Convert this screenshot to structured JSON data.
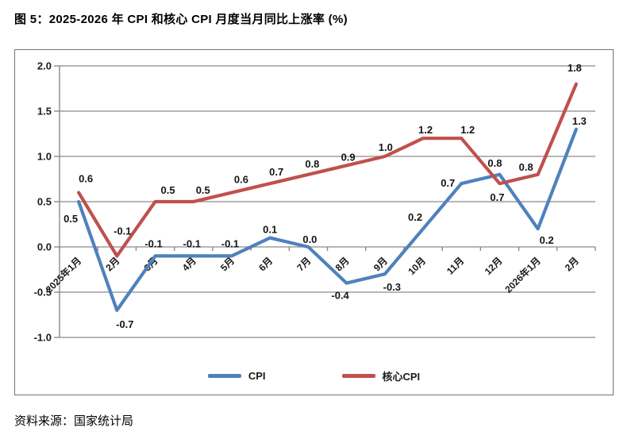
{
  "figure": {
    "title": "图 5：2025-2026 年 CPI 和核心 CPI 月度当月同比上涨率 (%)",
    "source": "资料来源：国家统计局"
  },
  "chart_data": {
    "type": "line",
    "title": "2025-2026 年 CPI 和核心 CPI 月度当月同比上涨率 (%)",
    "categories": [
      "2025年1月",
      "2月",
      "3月",
      "4月",
      "5月",
      "6月",
      "7月",
      "8月",
      "9月",
      "10月",
      "11月",
      "12月",
      "2026年1月",
      "2月"
    ],
    "series": [
      {
        "id": "cpi",
        "name": "CPI",
        "color": "#4F81BD",
        "values": [
          0.5,
          -0.7,
          -0.1,
          -0.1,
          -0.1,
          0.1,
          0.0,
          -0.4,
          -0.3,
          0.2,
          0.7,
          0.8,
          0.2,
          1.3
        ]
      },
      {
        "id": "core-cpi",
        "name": "核心CPI",
        "color": "#C0504D",
        "values": [
          0.6,
          -0.1,
          0.5,
          0.5,
          0.6,
          0.7,
          0.8,
          0.9,
          1.0,
          1.2,
          1.2,
          0.7,
          0.8,
          1.8
        ]
      }
    ],
    "ylim": [
      -1.0,
      2.0
    ],
    "yticks": [
      2.0,
      1.5,
      1.0,
      0.5,
      0.0,
      -0.5,
      -1.0
    ],
    "ytick_labels": [
      "2.0",
      "1.5",
      "1.0",
      "0.5",
      "0.0",
      "-0.5",
      "-1.0"
    ],
    "data_labels_shown": true,
    "data_label_decimals": 1,
    "grid": true,
    "legend_position": "bottom-center",
    "axis_color": "#8a8a8a",
    "label_color": "#1a1a1a"
  }
}
